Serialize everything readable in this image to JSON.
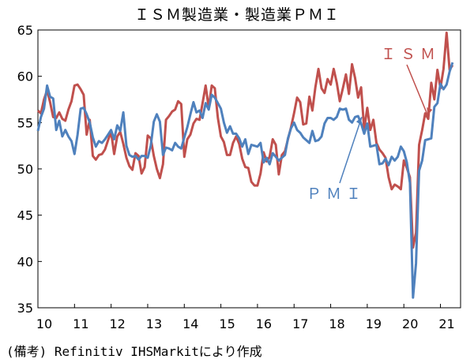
{
  "chart_data": {
    "type": "line",
    "title": "ＩＳＭ製造業・製造業ＰＭＩ",
    "xlabel": "",
    "ylabel": "",
    "ylim": [
      35,
      65
    ],
    "xlim": [
      2010.0,
      2021.55
    ],
    "yticks": [
      35,
      40,
      45,
      50,
      55,
      60,
      65
    ],
    "xticks": [
      {
        "label": "10",
        "value": 2010.0
      },
      {
        "label": "11",
        "value": 2011.0
      },
      {
        "label": "12",
        "value": 2012.0
      },
      {
        "label": "13",
        "value": 2013.0
      },
      {
        "label": "14",
        "value": 2014.0
      },
      {
        "label": "15",
        "value": 2015.0
      },
      {
        "label": "16",
        "value": 2016.0
      },
      {
        "label": "17",
        "value": 2017.0
      },
      {
        "label": "18",
        "value": 2018.0
      },
      {
        "label": "19",
        "value": 2019.0
      },
      {
        "label": "20",
        "value": 2020.0
      },
      {
        "label": "21",
        "value": 2021.0
      }
    ],
    "grid": false,
    "series": [
      {
        "name": "ＩＳＭ",
        "color": "#C0504D",
        "x": [
          2010.0,
          2010.083,
          2010.167,
          2010.25,
          2010.333,
          2010.417,
          2010.5,
          2010.583,
          2010.667,
          2010.75,
          2010.833,
          2010.917,
          2011.0,
          2011.083,
          2011.167,
          2011.25,
          2011.333,
          2011.417,
          2011.5,
          2011.583,
          2011.667,
          2011.75,
          2011.833,
          2011.917,
          2012.0,
          2012.083,
          2012.167,
          2012.25,
          2012.333,
          2012.417,
          2012.5,
          2012.583,
          2012.667,
          2012.75,
          2012.833,
          2012.917,
          2013.0,
          2013.083,
          2013.167,
          2013.25,
          2013.333,
          2013.417,
          2013.5,
          2013.583,
          2013.667,
          2013.75,
          2013.833,
          2013.917,
          2014.0,
          2014.083,
          2014.167,
          2014.25,
          2014.333,
          2014.417,
          2014.5,
          2014.583,
          2014.667,
          2014.75,
          2014.833,
          2014.917,
          2015.0,
          2015.083,
          2015.167,
          2015.25,
          2015.333,
          2015.417,
          2015.5,
          2015.583,
          2015.667,
          2015.75,
          2015.833,
          2015.917,
          2016.0,
          2016.083,
          2016.167,
          2016.25,
          2016.333,
          2016.417,
          2016.5,
          2016.583,
          2016.667,
          2016.75,
          2016.833,
          2016.917,
          2017.0,
          2017.083,
          2017.167,
          2017.25,
          2017.333,
          2017.417,
          2017.5,
          2017.583,
          2017.667,
          2017.75,
          2017.833,
          2017.917,
          2018.0,
          2018.083,
          2018.167,
          2018.25,
          2018.333,
          2018.417,
          2018.5,
          2018.583,
          2018.667,
          2018.75,
          2018.833,
          2018.917,
          2019.0,
          2019.083,
          2019.167,
          2019.25,
          2019.333,
          2019.417,
          2019.5,
          2019.583,
          2019.667,
          2019.75,
          2019.833,
          2019.917,
          2020.0,
          2020.083,
          2020.167,
          2020.25,
          2020.333,
          2020.417,
          2020.5,
          2020.583,
          2020.667,
          2020.75,
          2020.833,
          2020.917,
          2021.0,
          2021.083,
          2021.167,
          2021.25,
          2021.333
        ],
        "values": [
          56.3,
          56.0,
          57.5,
          58.5,
          57.2,
          55.6,
          55.5,
          56.1,
          55.4,
          55.2,
          56.4,
          57.3,
          59.0,
          59.1,
          58.6,
          58.0,
          53.7,
          55.3,
          51.4,
          51.0,
          51.5,
          51.6,
          52.1,
          53.1,
          54.0,
          51.6,
          53.5,
          54.0,
          52.7,
          51.2,
          50.3,
          49.9,
          51.7,
          51.4,
          49.5,
          50.2,
          53.6,
          53.3,
          51.4,
          50.0,
          49.0,
          50.5,
          55.3,
          55.7,
          56.2,
          56.4,
          57.3,
          57.0,
          51.3,
          53.2,
          53.7,
          54.9,
          55.4,
          55.3,
          57.1,
          59.0,
          56.6,
          59.0,
          58.7,
          55.5,
          53.5,
          52.9,
          51.5,
          51.5,
          52.8,
          53.5,
          52.7,
          51.1,
          50.2,
          50.1,
          48.6,
          48.2,
          48.2,
          49.5,
          51.8,
          50.8,
          51.3,
          53.2,
          52.6,
          49.4,
          51.5,
          51.9,
          53.2,
          54.5,
          56.0,
          57.7,
          57.2,
          54.8,
          54.9,
          57.8,
          56.3,
          58.8,
          60.8,
          58.7,
          58.2,
          59.7,
          59.1,
          60.8,
          59.3,
          57.3,
          58.7,
          60.2,
          58.1,
          61.3,
          59.8,
          57.7,
          58.8,
          54.3,
          56.6,
          54.2,
          55.3,
          52.8,
          52.1,
          51.7,
          51.2,
          49.1,
          47.8,
          48.3,
          48.1,
          47.8,
          50.9,
          50.1,
          49.1,
          41.5,
          43.1,
          52.6,
          54.2,
          56.0,
          55.4,
          59.3,
          57.5,
          60.7,
          58.7,
          60.8,
          64.7,
          60.7,
          61.2
        ]
      },
      {
        "name": "ＰＭＩ",
        "color": "#4F81BD",
        "x": [
          2010.0,
          2010.083,
          2010.167,
          2010.25,
          2010.333,
          2010.417,
          2010.5,
          2010.583,
          2010.667,
          2010.75,
          2010.833,
          2010.917,
          2011.0,
          2011.083,
          2011.167,
          2011.25,
          2011.333,
          2011.417,
          2011.5,
          2011.583,
          2011.667,
          2011.75,
          2011.833,
          2011.917,
          2012.0,
          2012.083,
          2012.167,
          2012.25,
          2012.333,
          2012.417,
          2012.5,
          2012.583,
          2012.667,
          2012.75,
          2012.833,
          2012.917,
          2013.0,
          2013.083,
          2013.167,
          2013.25,
          2013.333,
          2013.417,
          2013.5,
          2013.583,
          2013.667,
          2013.75,
          2013.833,
          2013.917,
          2014.0,
          2014.083,
          2014.167,
          2014.25,
          2014.333,
          2014.417,
          2014.5,
          2014.583,
          2014.667,
          2014.75,
          2014.833,
          2014.917,
          2015.0,
          2015.083,
          2015.167,
          2015.25,
          2015.333,
          2015.417,
          2015.5,
          2015.583,
          2015.667,
          2015.75,
          2015.833,
          2015.917,
          2016.0,
          2016.083,
          2016.167,
          2016.25,
          2016.333,
          2016.417,
          2016.5,
          2016.583,
          2016.667,
          2016.75,
          2016.833,
          2016.917,
          2017.0,
          2017.083,
          2017.167,
          2017.25,
          2017.333,
          2017.417,
          2017.5,
          2017.583,
          2017.667,
          2017.75,
          2017.833,
          2017.917,
          2018.0,
          2018.083,
          2018.167,
          2018.25,
          2018.333,
          2018.417,
          2018.5,
          2018.583,
          2018.667,
          2018.75,
          2018.833,
          2018.917,
          2019.0,
          2019.083,
          2019.167,
          2019.25,
          2019.333,
          2019.417,
          2019.5,
          2019.583,
          2019.667,
          2019.75,
          2019.833,
          2019.917,
          2020.0,
          2020.083,
          2020.167,
          2020.25,
          2020.333,
          2020.417,
          2020.5,
          2020.583,
          2020.667,
          2020.75,
          2020.833,
          2020.917,
          2021.0,
          2021.083,
          2021.167,
          2021.25,
          2021.333
        ],
        "values": [
          54.1,
          55.6,
          56.5,
          59.0,
          57.8,
          57.6,
          54.2,
          55.2,
          53.5,
          54.2,
          53.5,
          53.0,
          51.6,
          53.7,
          56.5,
          56.6,
          55.9,
          55.0,
          53.4,
          52.4,
          53.0,
          52.8,
          53.2,
          53.7,
          54.2,
          53.2,
          54.7,
          54.1,
          56.1,
          52.5,
          51.5,
          51.3,
          51.4,
          51.0,
          51.4,
          51.4,
          51.2,
          52.5,
          55.1,
          55.9,
          55.1,
          51.5,
          52.3,
          52.2,
          52.0,
          52.8,
          52.4,
          52.2,
          53.4,
          54.5,
          55.9,
          57.2,
          56.1,
          56.3,
          55.5,
          57.1,
          56.4,
          58.0,
          57.7,
          57.1,
          56.5,
          55.0,
          53.9,
          54.6,
          53.8,
          53.8,
          53.3,
          52.4,
          53.2,
          51.6,
          52.6,
          52.5,
          52.4,
          52.8,
          50.7,
          51.2,
          50.5,
          51.7,
          51.3,
          50.9,
          51.2,
          51.5,
          53.3,
          54.4,
          55.0,
          54.2,
          53.9,
          53.4,
          53.1,
          52.8,
          54.1,
          53.0,
          53.1,
          53.5,
          54.9,
          55.5,
          55.5,
          55.3,
          55.6,
          56.5,
          56.4,
          56.5,
          55.3,
          55.0,
          55.6,
          55.7,
          54.9,
          53.8,
          54.9,
          52.4,
          52.5,
          52.6,
          50.5,
          50.6,
          51.1,
          50.4,
          51.3,
          50.9,
          51.3,
          52.4,
          51.9,
          50.7,
          48.5,
          36.1,
          39.8,
          49.8,
          50.9,
          53.1,
          53.2,
          53.3,
          56.7,
          57.1,
          59.2,
          58.6,
          59.1,
          60.5,
          61.5
        ]
      }
    ],
    "annotations": [
      {
        "text": "ＩＳＭ",
        "x": 2020.65,
        "y": 55.8
      },
      {
        "text": "ＰＭＩ",
        "x": 2018.85,
        "y": 55.6
      }
    ]
  },
  "source_note": "(備考) Refinitiv IHSMarkitにより作成"
}
